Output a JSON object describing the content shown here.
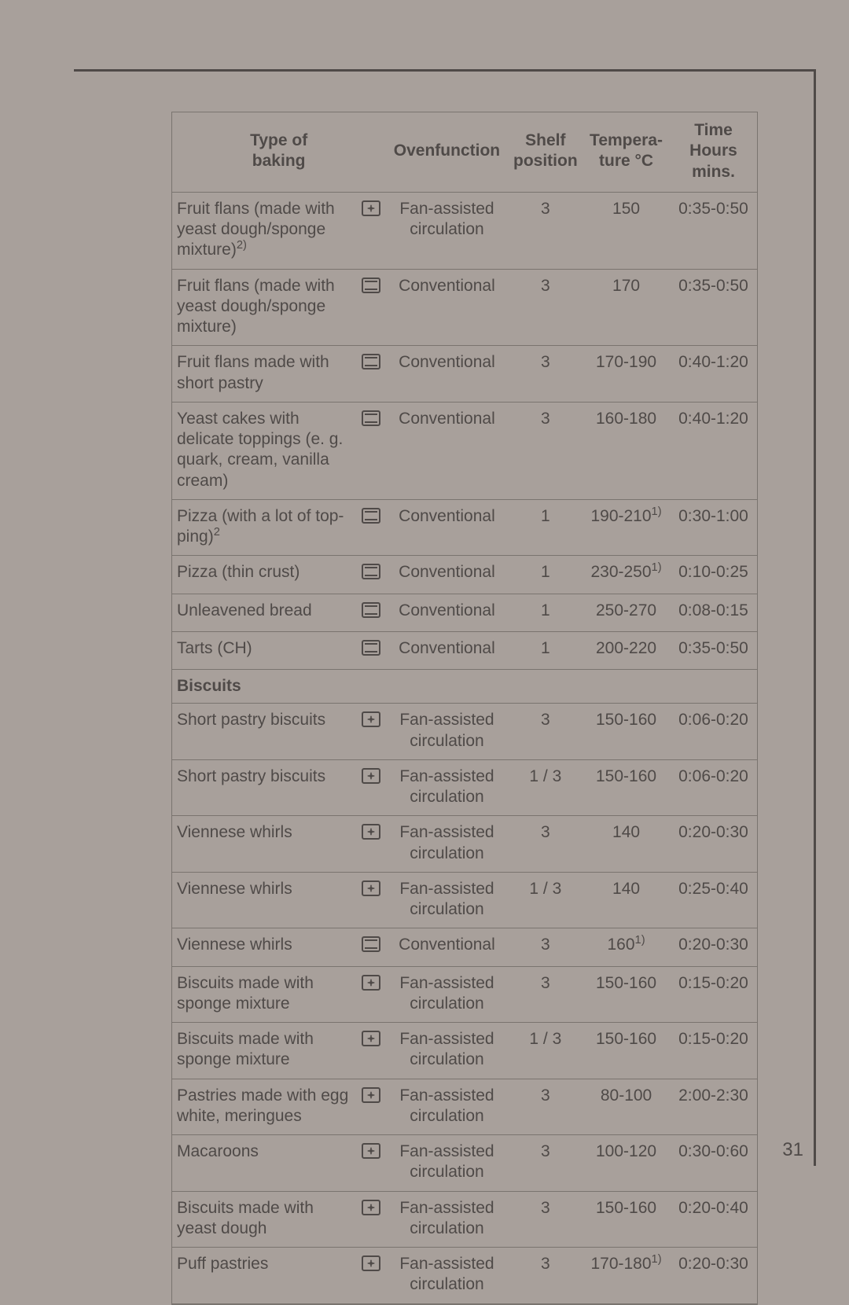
{
  "page_number": "31",
  "headers": {
    "type": "Type of\nbaking",
    "func": "Ovenfunction",
    "shelf": "Shelf\nposition",
    "temp": "Tempera-\nture °C",
    "time": "Time\nHours\nmins."
  },
  "icon_colors": {
    "stroke": "#4f4a48",
    "fill": "none"
  },
  "rows": [
    {
      "type_html": "Fruit flans (made with yeast dough/sponge mixture)<sup>2)</sup>",
      "icon": "fan",
      "func": "Fan-assisted circulation",
      "shelf": "3",
      "temp_html": "150",
      "time": "0:35-0:50"
    },
    {
      "type_html": "Fruit flans (made with yeast dough/sponge mixture)",
      "icon": "conv",
      "func": "Conventional",
      "shelf": "3",
      "temp_html": "170",
      "time": "0:35-0:50"
    },
    {
      "type_html": "Fruit flans made with short pastry",
      "icon": "conv",
      "func": "Conventional",
      "shelf": "3",
      "temp_html": "170-190",
      "time": "0:40-1:20"
    },
    {
      "type_html": "Yeast cakes with delicate toppings (e. g. quark, cream, vanilla cream)",
      "icon": "conv",
      "func": "Conventional",
      "shelf": "3",
      "temp_html": "160-180",
      "time": "0:40-1:20"
    },
    {
      "type_html": "Pizza (with a lot of top-ping)<sup>2</sup>",
      "icon": "conv",
      "func": "Conventional",
      "shelf": "1",
      "temp_html": "190-210<sup>1)</sup>",
      "time": "0:30-1:00"
    },
    {
      "type_html": "Pizza (thin crust)",
      "icon": "conv",
      "func": "Conventional",
      "shelf": "1",
      "temp_html": "230-250<sup>1)</sup>",
      "time": "0:10-0:25"
    },
    {
      "type_html": "Unleavened bread",
      "icon": "conv",
      "func": "Conventional",
      "shelf": "1",
      "temp_html": "250-270",
      "time": "0:08-0:15"
    },
    {
      "type_html": "Tarts (CH)",
      "icon": "conv",
      "func": "Conventional",
      "shelf": "1",
      "temp_html": "200-220",
      "time": "0:35-0:50"
    },
    {
      "section": true,
      "type_html": "Biscuits"
    },
    {
      "type_html": "Short pastry biscuits",
      "icon": "fan",
      "func": "Fan-assisted circulation",
      "shelf": "3",
      "temp_html": "150-160",
      "time": "0:06-0:20"
    },
    {
      "type_html": "Short pastry biscuits",
      "icon": "fan",
      "func": "Fan-assisted circulation",
      "shelf": "1 / 3",
      "temp_html": "150-160",
      "time": "0:06-0:20"
    },
    {
      "type_html": "Viennese whirls",
      "icon": "fan",
      "func": "Fan-assisted circulation",
      "shelf": "3",
      "temp_html": "140",
      "time": "0:20-0:30"
    },
    {
      "type_html": "Viennese whirls",
      "icon": "fan",
      "func": "Fan-assisted circulation",
      "shelf": "1 / 3",
      "temp_html": "140",
      "time": "0:25-0:40"
    },
    {
      "type_html": "Viennese whirls",
      "icon": "conv",
      "func": "Conventional",
      "shelf": "3",
      "temp_html": "160<sup>1)</sup>",
      "time": "0:20-0:30"
    },
    {
      "type_html": "Biscuits made with sponge mixture",
      "icon": "fan",
      "func": "Fan-assisted circulation",
      "shelf": "3",
      "temp_html": "150-160",
      "time": "0:15-0:20"
    },
    {
      "type_html": "Biscuits made with sponge mixture",
      "icon": "fan",
      "func": "Fan-assisted circulation",
      "shelf": "1 / 3",
      "temp_html": "150-160",
      "time": "0:15-0:20"
    },
    {
      "type_html": "Pastries made with egg white, meringues",
      "icon": "fan",
      "func": "Fan-assisted circulation",
      "shelf": "3",
      "temp_html": "80-100",
      "time": "2:00-2:30"
    },
    {
      "type_html": "Macaroons",
      "icon": "fan",
      "func": "Fan-assisted circulation",
      "shelf": "3",
      "temp_html": "100-120",
      "time": "0:30-0:60"
    },
    {
      "type_html": "Biscuits made with yeast dough",
      "icon": "fan",
      "func": "Fan-assisted circulation",
      "shelf": "3",
      "temp_html": "150-160",
      "time": "0:20-0:40"
    },
    {
      "type_html": "Puff pastries",
      "icon": "fan",
      "func": "Fan-assisted circulation",
      "shelf": "3",
      "temp_html": "170-180<sup>1)</sup>",
      "time": "0:20-0:30"
    }
  ]
}
